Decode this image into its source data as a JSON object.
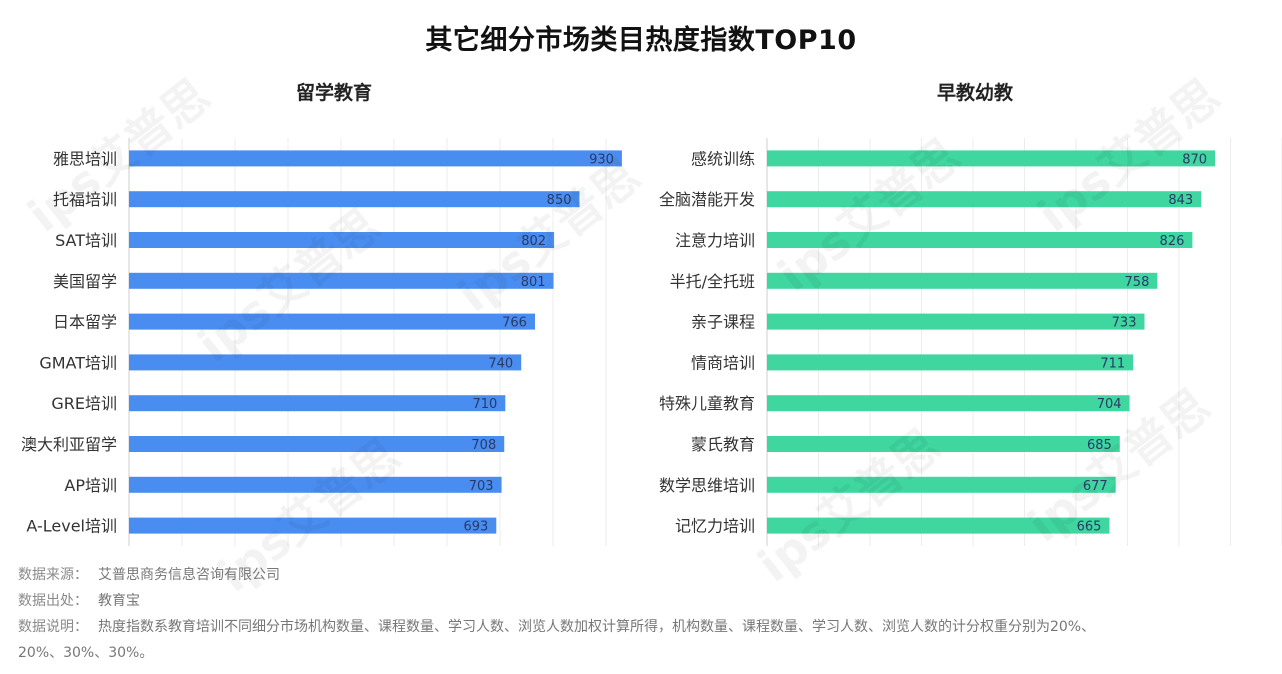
{
  "title": "其它细分市场类目热度指数TOP10",
  "watermark_text": "ips艾普思",
  "chart_data": [
    {
      "type": "bar",
      "orientation": "horizontal",
      "title": "留学教育",
      "categories": [
        "雅思培训",
        "托福培训",
        "SAT培训",
        "美国留学",
        "日本留学",
        "GMAT培训",
        "GRE培训",
        "澳大利亚留学",
        "AP培训",
        "A-Level培训"
      ],
      "values": [
        930,
        850,
        802,
        801,
        766,
        740,
        710,
        708,
        703,
        693
      ],
      "xlim": [
        0,
        1000
      ],
      "color": "#4a8df0",
      "grid": true
    },
    {
      "type": "bar",
      "orientation": "horizontal",
      "title": "早教幼教",
      "categories": [
        "感统训练",
        "全脑潜能开发",
        "注意力培训",
        "半托/全托班",
        "亲子课程",
        "情商培训",
        "特殊儿童教育",
        "蒙氏教育",
        "数学思维培训",
        "记忆力培训"
      ],
      "values": [
        870,
        843,
        826,
        758,
        733,
        711,
        704,
        685,
        677,
        665
      ],
      "xlim": [
        0,
        1000
      ],
      "color": "#3fd6a0",
      "grid": true
    }
  ],
  "notes": {
    "source_label": "数据来源：",
    "source_value": "艾普思商务信息咨询有限公司",
    "origin_label": "数据出处：",
    "origin_value": "教育宝",
    "desc_label": "数据说明：",
    "desc_value": "热度指数系教育培训不同细分市场机构数量、课程数量、学习人数、浏览人数加权计算所得，机构数量、课程数量、学习人数、浏览人数的计分权重分别为20%、",
    "desc_value_2": "20%、30%、30%。"
  }
}
